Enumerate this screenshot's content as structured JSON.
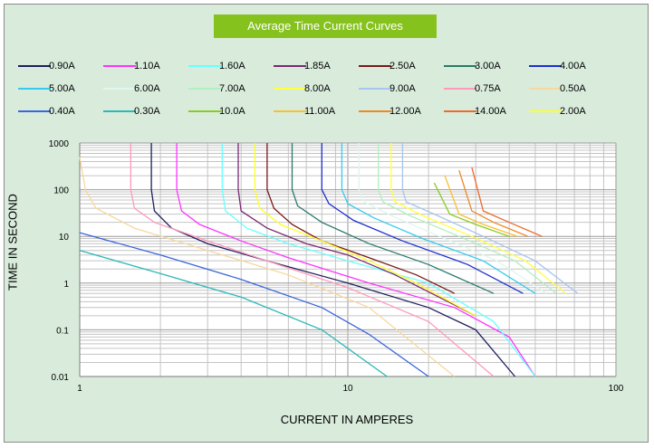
{
  "chart_data": {
    "type": "line",
    "title": "Average Time Current Curves",
    "xlabel": "CURRENT IN AMPERES",
    "ylabel": "TIME IN SECOND",
    "x_scale": "log",
    "y_scale": "log",
    "xlim": [
      1,
      100
    ],
    "ylim": [
      0.01,
      1000
    ],
    "x_ticks": [
      "1",
      "10",
      "100"
    ],
    "y_ticks": [
      "1000",
      "100",
      "10",
      "1",
      "0.1",
      "0.01"
    ],
    "grid": true,
    "legend_position": "top",
    "series": [
      {
        "name": "0.90A",
        "color": "#1f1f5e",
        "points": [
          [
            1.85,
            1000
          ],
          [
            1.85,
            100
          ],
          [
            1.9,
            35
          ],
          [
            2.2,
            15
          ],
          [
            3,
            7
          ],
          [
            5,
            3
          ],
          [
            10,
            1
          ],
          [
            20,
            0.3
          ],
          [
            30,
            0.1
          ],
          [
            42,
            0.01
          ]
        ]
      },
      {
        "name": "1.10A",
        "color": "#ff33ff",
        "points": [
          [
            2.3,
            1000
          ],
          [
            2.3,
            100
          ],
          [
            2.4,
            35
          ],
          [
            2.8,
            18
          ],
          [
            4,
            8
          ],
          [
            6,
            3.5
          ],
          [
            12,
            1
          ],
          [
            25,
            0.3
          ],
          [
            40,
            0.07
          ],
          [
            50,
            0.01
          ]
        ]
      },
      {
        "name": "1.60A",
        "color": "#66ffff",
        "points": [
          [
            3.4,
            1000
          ],
          [
            3.4,
            100
          ],
          [
            3.5,
            35
          ],
          [
            4.2,
            15
          ],
          [
            6,
            7
          ],
          [
            10,
            3
          ],
          [
            20,
            1
          ],
          [
            35,
            0.15
          ],
          [
            50,
            0.01
          ]
        ]
      },
      {
        "name": "1.85A",
        "color": "#7a2a6e",
        "points": [
          [
            3.9,
            1000
          ],
          [
            3.9,
            100
          ],
          [
            4,
            35
          ],
          [
            5,
            15
          ],
          [
            7,
            7
          ],
          [
            10,
            4
          ],
          [
            15,
            1.5
          ],
          [
            30,
            0.2
          ]
        ]
      },
      {
        "name": "2.50A",
        "color": "#7a1a1a",
        "points": [
          [
            5,
            1000
          ],
          [
            5,
            100
          ],
          [
            5.3,
            40
          ],
          [
            6.2,
            18
          ],
          [
            8,
            8
          ],
          [
            12,
            3.5
          ],
          [
            18,
            1.5
          ],
          [
            25,
            0.6
          ]
        ]
      },
      {
        "name": "3.00A",
        "color": "#2a7a6a",
        "points": [
          [
            6.2,
            1000
          ],
          [
            6.2,
            100
          ],
          [
            6.5,
            45
          ],
          [
            8,
            20
          ],
          [
            12,
            7
          ],
          [
            20,
            2.5
          ],
          [
            35,
            0.6
          ]
        ]
      },
      {
        "name": "4.00A",
        "color": "#1c2fd0",
        "points": [
          [
            8,
            1000
          ],
          [
            8,
            100
          ],
          [
            8.5,
            50
          ],
          [
            10.5,
            22
          ],
          [
            16,
            8
          ],
          [
            28,
            2.5
          ],
          [
            45,
            0.6
          ]
        ]
      },
      {
        "name": "5.00A",
        "color": "#33ccee",
        "points": [
          [
            9.5,
            1000
          ],
          [
            9.5,
            100
          ],
          [
            10,
            50
          ],
          [
            12.5,
            25
          ],
          [
            19,
            9
          ],
          [
            32,
            3
          ],
          [
            50,
            0.6
          ]
        ]
      },
      {
        "name": "6.00A",
        "color": "#dff7ef",
        "points": [
          [
            11,
            1000
          ],
          [
            11,
            100
          ],
          [
            11.5,
            55
          ],
          [
            14.5,
            28
          ],
          [
            22,
            10
          ],
          [
            36,
            3
          ],
          [
            55,
            0.6
          ]
        ]
      },
      {
        "name": "7.00A",
        "color": "#b0f0c0",
        "points": [
          [
            13,
            1000
          ],
          [
            13,
            100
          ],
          [
            13.5,
            55
          ],
          [
            17,
            28
          ],
          [
            26,
            10
          ],
          [
            42,
            3
          ],
          [
            60,
            0.6
          ]
        ]
      },
      {
        "name": "8.00A",
        "color": "#ffff44",
        "points": [
          [
            14.5,
            1000
          ],
          [
            14.5,
            100
          ],
          [
            15,
            55
          ],
          [
            19,
            28
          ],
          [
            29,
            10
          ],
          [
            46,
            3
          ],
          [
            65,
            0.6
          ]
        ]
      },
      {
        "name": "9.00A",
        "color": "#a8c4f0",
        "points": [
          [
            16,
            1000
          ],
          [
            16,
            100
          ],
          [
            16.5,
            55
          ],
          [
            21,
            30
          ],
          [
            32,
            10
          ],
          [
            50,
            3
          ],
          [
            72,
            0.6
          ]
        ]
      },
      {
        "name": "0.75A",
        "color": "#ff99bb",
        "points": [
          [
            1.55,
            1000
          ],
          [
            1.55,
            100
          ],
          [
            1.6,
            40
          ],
          [
            1.9,
            20
          ],
          [
            3,
            8
          ],
          [
            5,
            3
          ],
          [
            10,
            0.8
          ],
          [
            20,
            0.15
          ],
          [
            35,
            0.01
          ]
        ]
      },
      {
        "name": "0.50A",
        "color": "#f7d8a0",
        "points": [
          [
            1,
            500
          ],
          [
            1.05,
            100
          ],
          [
            1.15,
            40
          ],
          [
            1.6,
            15
          ],
          [
            3,
            5
          ],
          [
            6,
            1.5
          ],
          [
            12,
            0.3
          ],
          [
            25,
            0.01
          ]
        ]
      },
      {
        "name": "0.40A",
        "color": "#3a66dd",
        "points": [
          [
            1,
            12
          ],
          [
            2,
            4
          ],
          [
            4,
            1.2
          ],
          [
            8,
            0.3
          ],
          [
            12,
            0.08
          ],
          [
            20,
            0.01
          ]
        ]
      },
      {
        "name": "0.30A",
        "color": "#2ab8b8",
        "points": [
          [
            1,
            5
          ],
          [
            2,
            1.6
          ],
          [
            4,
            0.5
          ],
          [
            8,
            0.1
          ],
          [
            14,
            0.01
          ]
        ]
      },
      {
        "name": "10.0A",
        "color": "#88cc22",
        "points": [
          [
            21,
            140
          ],
          [
            24,
            30
          ],
          [
            30,
            18
          ],
          [
            40,
            10
          ]
        ]
      },
      {
        "name": "11.00A",
        "color": "#f8c030",
        "points": [
          [
            23,
            200
          ],
          [
            26,
            30
          ],
          [
            32,
            18
          ],
          [
            43,
            10
          ]
        ]
      },
      {
        "name": "12.00A",
        "color": "#ee8822",
        "points": [
          [
            26,
            260
          ],
          [
            29,
            35
          ],
          [
            35,
            20
          ],
          [
            47,
            10
          ]
        ]
      },
      {
        "name": "14.00A",
        "color": "#ee6a2a",
        "points": [
          [
            29,
            300
          ],
          [
            32,
            35
          ],
          [
            40,
            20
          ],
          [
            53,
            10
          ]
        ]
      },
      {
        "name": "2.00A",
        "color": "#ffff22",
        "points": [
          [
            4.5,
            1000
          ],
          [
            4.5,
            100
          ],
          [
            4.7,
            40
          ],
          [
            5.6,
            18
          ],
          [
            8,
            8
          ],
          [
            12,
            3
          ],
          [
            18,
            1
          ],
          [
            30,
            0.2
          ]
        ]
      }
    ]
  }
}
